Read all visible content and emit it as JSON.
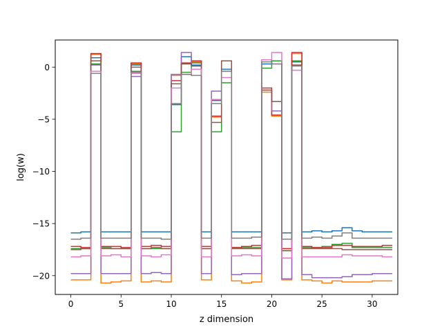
{
  "chart_data": {
    "type": "line",
    "step": "post",
    "title": "",
    "xlabel": "z dimension",
    "ylabel": "log(w)",
    "xlim": [
      -1.55,
      32.55
    ],
    "ylim": [
      -21.8,
      2.6
    ],
    "xticks": [
      0,
      5,
      10,
      15,
      20,
      25,
      30
    ],
    "xtick_labels": [
      "0",
      "5",
      "10",
      "15",
      "20",
      "25",
      "30"
    ],
    "yticks": [
      0,
      -5,
      -10,
      -15,
      -20
    ],
    "ytick_labels": [
      "0",
      "−5",
      "−10",
      "−15",
      "−20"
    ],
    "grid": false,
    "legend": "none",
    "x": [
      0,
      1,
      2,
      3,
      4,
      5,
      6,
      7,
      8,
      9,
      10,
      11,
      12,
      13,
      14,
      15,
      16,
      17,
      18,
      19,
      20,
      21,
      22,
      23,
      24,
      25,
      26,
      27,
      28,
      29,
      30,
      31
    ],
    "series": [
      {
        "color": "#1f77b4",
        "values": [
          -15.9,
          -15.8,
          0.9,
          -15.8,
          -15.8,
          -15.8,
          0.2,
          -15.8,
          -15.8,
          -15.8,
          -3.6,
          1.0,
          0.2,
          -15.8,
          -3.2,
          -0.2,
          -15.8,
          -15.8,
          -15.8,
          0.3,
          0.6,
          -15.9,
          0.5,
          -15.8,
          -15.7,
          -15.8,
          -15.7,
          -15.4,
          -15.7,
          -15.8,
          -15.8,
          -15.8
        ]
      },
      {
        "color": "#ff7f0e",
        "values": [
          -20.4,
          -20.4,
          1.2,
          -20.7,
          -20.6,
          -20.5,
          0.3,
          -20.6,
          -20.5,
          -20.6,
          -0.8,
          0.3,
          0.5,
          -20.4,
          -4.8,
          0.6,
          -20.5,
          -20.7,
          -20.6,
          -2.4,
          -4.7,
          -20.4,
          1.3,
          -20.4,
          -20.5,
          -20.7,
          -20.5,
          -20.6,
          -20.6,
          -20.6,
          -20.5,
          -20.5
        ]
      },
      {
        "color": "#2ca02c",
        "values": [
          -17.4,
          -17.4,
          0.3,
          -17.3,
          -17.4,
          -17.4,
          -0.4,
          -17.4,
          -17.4,
          -17.4,
          -6.2,
          -0.5,
          0.4,
          -17.4,
          -6.2,
          -1.5,
          -17.3,
          -17.3,
          -17.3,
          -0.1,
          0.6,
          -17.6,
          0.6,
          -17.3,
          -17.3,
          -17.2,
          -17.0,
          -16.9,
          -17.3,
          -17.3,
          -17.3,
          -17.3
        ]
      },
      {
        "color": "#d62728",
        "values": [
          -17.2,
          -17.3,
          1.3,
          -17.2,
          -17.2,
          -17.3,
          0.4,
          -17.2,
          -17.1,
          -17.2,
          -1.3,
          0.4,
          0.6,
          -17.2,
          -4.7,
          0.6,
          -17.3,
          -17.2,
          -17.1,
          -2.0,
          -4.6,
          -17.4,
          1.4,
          -17.2,
          -17.3,
          -17.3,
          -17.1,
          -17.1,
          -17.2,
          -17.2,
          -17.2,
          -17.1
        ]
      },
      {
        "color": "#9467bd",
        "values": [
          -19.8,
          -19.8,
          0.2,
          -19.8,
          -19.8,
          -19.8,
          -0.9,
          -19.8,
          -19.7,
          -19.8,
          -0.7,
          1.4,
          0.1,
          -19.8,
          -2.3,
          -0.4,
          -19.9,
          -19.8,
          -19.8,
          -2.2,
          -4.2,
          -20.3,
          0.1,
          -19.9,
          -20.2,
          -20.2,
          -20.2,
          -20.1,
          -19.9,
          -19.9,
          -19.8,
          -19.8
        ]
      },
      {
        "color": "#8c564b",
        "values": [
          -17.5,
          -17.4,
          0.6,
          -17.4,
          -17.4,
          -17.4,
          0.0,
          -17.4,
          -17.3,
          -17.4,
          -1.6,
          0.3,
          0.1,
          -17.4,
          -5.3,
          0.6,
          -17.4,
          -17.4,
          -17.4,
          -2.2,
          -3.3,
          -17.6,
          0.2,
          -17.4,
          -17.4,
          -17.4,
          -17.4,
          -17.5,
          -17.5,
          -17.5,
          -17.5,
          -17.5
        ]
      },
      {
        "color": "#e377c2",
        "values": [
          -18.2,
          -18.1,
          -0.4,
          -18.1,
          -18.0,
          -18.2,
          -0.6,
          -18.1,
          -18.2,
          -18.0,
          -2.0,
          -0.7,
          -0.2,
          -18.2,
          -3.1,
          -1.0,
          -18.1,
          -18.0,
          -18.1,
          0.7,
          1.4,
          -18.3,
          -0.3,
          -18.2,
          -18.2,
          -18.2,
          -18.2,
          -18.0,
          -18.1,
          -18.1,
          -18.1,
          -18.2
        ]
      },
      {
        "color": "#7f7f7f",
        "values": [
          -16.5,
          -16.4,
          -0.6,
          -16.4,
          -16.4,
          -16.4,
          -0.5,
          -16.4,
          -16.4,
          -16.5,
          -3.5,
          -0.7,
          -0.8,
          -16.4,
          -3.5,
          -0.4,
          -16.4,
          -16.4,
          -16.3,
          0.5,
          0.3,
          -16.5,
          0.1,
          -16.4,
          -16.3,
          -16.4,
          -16.2,
          -15.9,
          -16.4,
          -16.4,
          -16.4,
          -16.4
        ]
      }
    ]
  }
}
